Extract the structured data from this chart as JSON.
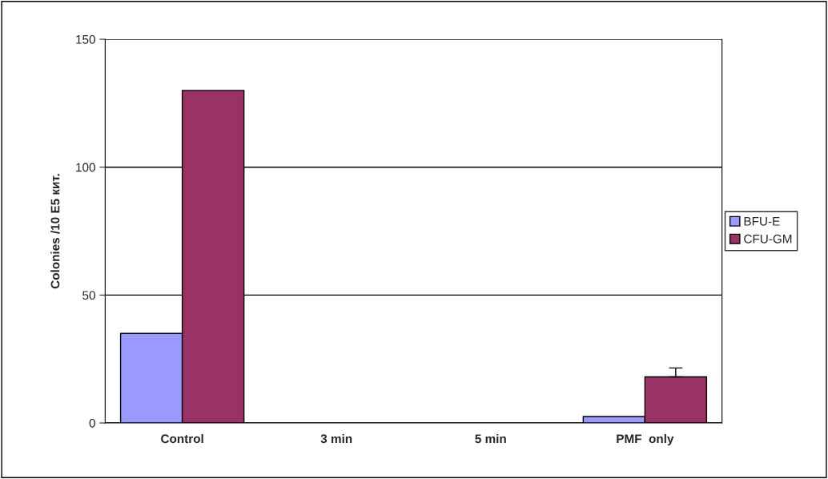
{
  "chart_data": {
    "type": "bar",
    "ylabel": "Colonies /10 E5 кит.",
    "categories": [
      "Control",
      "3 min",
      "5 min",
      "PMF  only"
    ],
    "series": [
      {
        "name": "BFU-E",
        "color": "#9999ff",
        "values": [
          35,
          null,
          null,
          2.5
        ]
      },
      {
        "name": "CFU-GM",
        "color": "#993366",
        "values": [
          130,
          null,
          null,
          18
        ],
        "errors": [
          null,
          null,
          null,
          3.5
        ]
      }
    ],
    "ylim": [
      0,
      150
    ],
    "yticks": [
      0,
      50,
      100,
      150
    ],
    "grid": "y",
    "legend": "right"
  }
}
